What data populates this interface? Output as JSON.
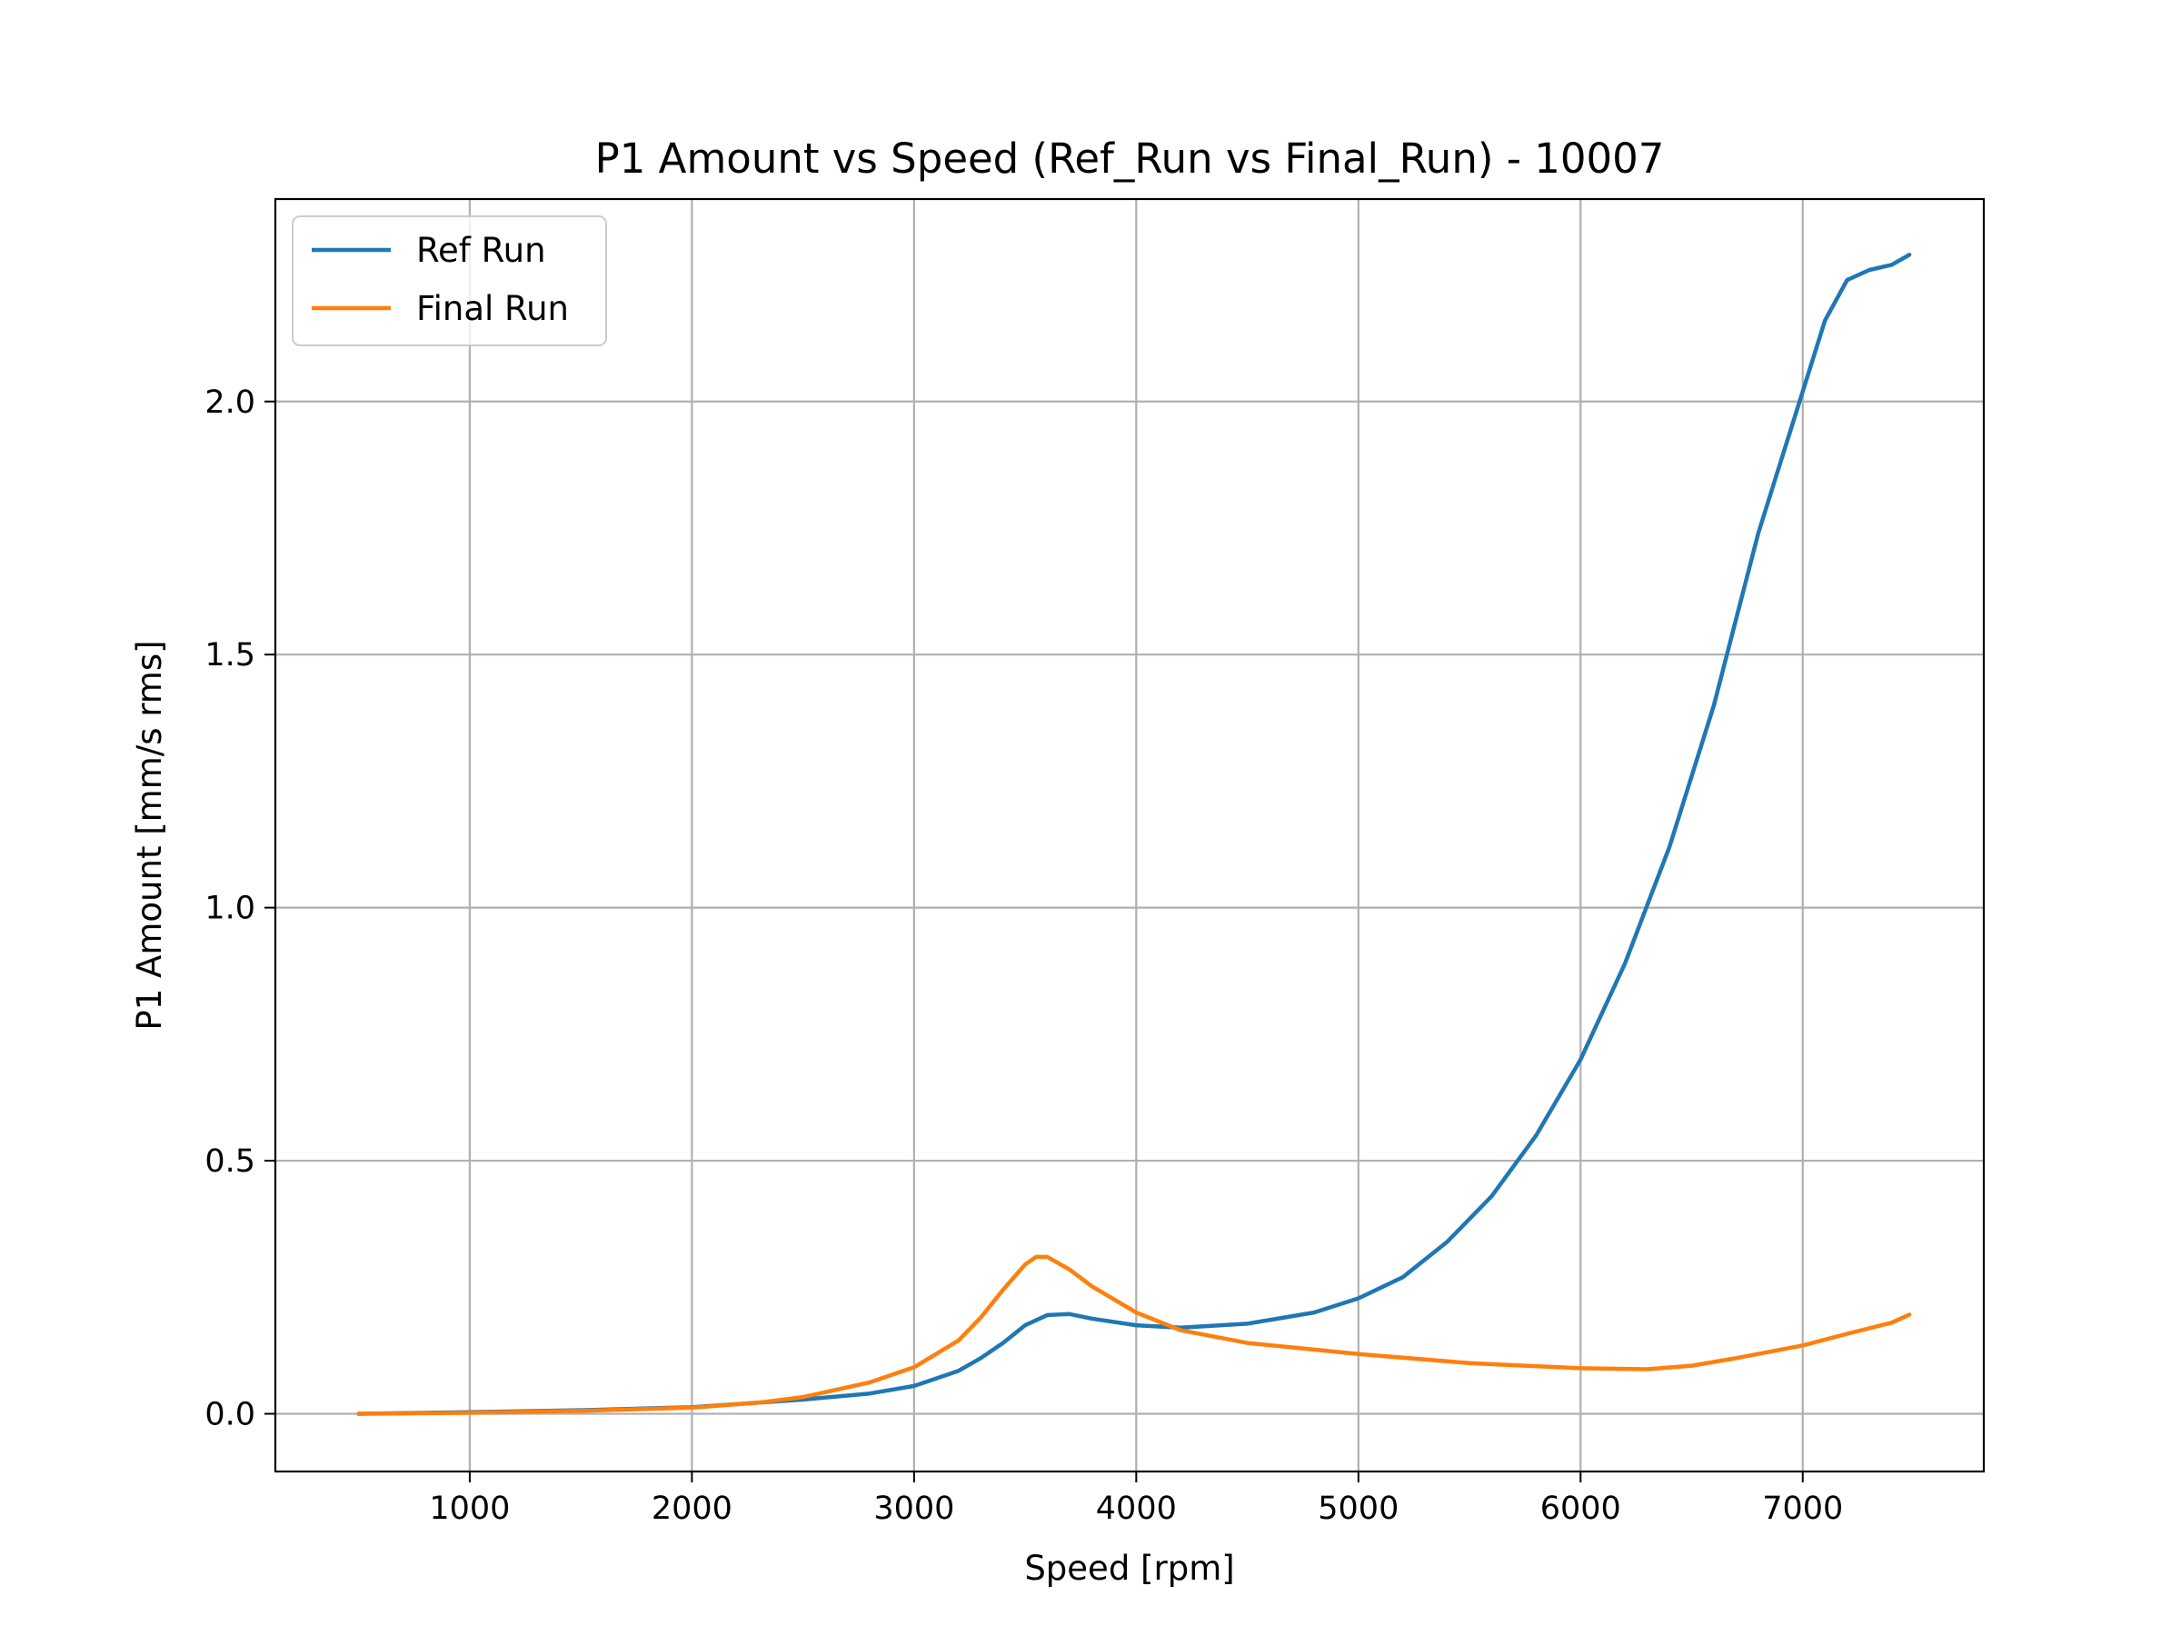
{
  "chart_data": {
    "type": "line",
    "title": "P1 Amount vs Speed (Ref_Run vs Final_Run) - 10007",
    "xlabel": "Speed [rpm]",
    "ylabel": "P1 Amount [mm/s rms]",
    "xlim": [
      125,
      7815
    ],
    "ylim": [
      -0.114,
      2.4
    ],
    "xticks": [
      1000,
      2000,
      3000,
      4000,
      5000,
      6000,
      7000
    ],
    "yticks": [
      0.0,
      0.5,
      1.0,
      1.5,
      2.0
    ],
    "xtick_labels": [
      "1000",
      "2000",
      "3000",
      "4000",
      "5000",
      "6000",
      "7000"
    ],
    "ytick_labels": [
      "0.0",
      "0.5",
      "1.0",
      "1.5",
      "2.0"
    ],
    "grid": true,
    "legend_position": "top-left",
    "series": [
      {
        "name": "Ref Run",
        "color": "#1f77b4",
        "x": [
          500,
          1000,
          1500,
          2000,
          2500,
          2800,
          3000,
          3200,
          3300,
          3400,
          3500,
          3600,
          3700,
          3800,
          4000,
          4200,
          4500,
          4800,
          5000,
          5200,
          5400,
          5600,
          5800,
          6000,
          6200,
          6400,
          6600,
          6700,
          6800,
          6900,
          7000,
          7100,
          7200,
          7300,
          7400,
          7480
        ],
        "y": [
          0.0,
          0.003,
          0.007,
          0.013,
          0.028,
          0.04,
          0.055,
          0.085,
          0.11,
          0.14,
          0.175,
          0.195,
          0.197,
          0.188,
          0.175,
          0.17,
          0.178,
          0.2,
          0.228,
          0.27,
          0.34,
          0.43,
          0.55,
          0.7,
          0.89,
          1.12,
          1.4,
          1.57,
          1.74,
          1.88,
          2.02,
          2.16,
          2.24,
          2.26,
          2.27,
          2.29
        ]
      },
      {
        "name": "Final Run",
        "color": "#ff7f0e",
        "x": [
          500,
          1000,
          1500,
          2000,
          2300,
          2500,
          2800,
          3000,
          3200,
          3300,
          3400,
          3500,
          3550,
          3600,
          3700,
          3800,
          4000,
          4200,
          4500,
          5000,
          5500,
          6000,
          6300,
          6500,
          6700,
          7000,
          7200,
          7400,
          7480
        ],
        "y": [
          0.0,
          0.002,
          0.006,
          0.012,
          0.022,
          0.033,
          0.062,
          0.092,
          0.145,
          0.19,
          0.245,
          0.295,
          0.31,
          0.31,
          0.285,
          0.252,
          0.2,
          0.165,
          0.14,
          0.118,
          0.1,
          0.09,
          0.088,
          0.095,
          0.11,
          0.135,
          0.158,
          0.18,
          0.196
        ]
      }
    ]
  }
}
